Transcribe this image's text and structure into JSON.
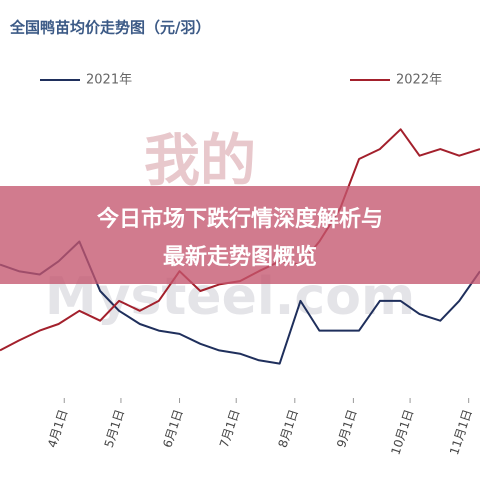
{
  "chart_data": {
    "type": "line",
    "title": "全国鸭苗均价走势图（元/羽）",
    "watermark": [
      "我的",
      "Mysteel.com"
    ],
    "x": [
      -34,
      -24,
      -13,
      -3,
      8,
      19,
      29,
      40,
      50,
      61,
      72,
      82,
      93,
      103,
      114,
      125,
      135,
      146,
      156,
      167,
      178,
      188,
      199,
      209,
      220
    ],
    "series": [
      {
        "name": "2021年",
        "color": "#1f2f5c",
        "values": [
          38,
          36,
          35,
          39,
          45,
          30,
          24,
          20,
          18,
          17,
          14,
          12,
          11,
          9,
          8,
          27,
          18,
          18,
          18,
          27,
          27,
          23,
          21,
          27,
          36
        ]
      },
      {
        "name": "2022年",
        "color": "#a3202c",
        "values": [
          12,
          15,
          18,
          20,
          24,
          21,
          27,
          24,
          27,
          36,
          30,
          32,
          33,
          36,
          39,
          38,
          45,
          55,
          70,
          73,
          79,
          71,
          73,
          71,
          73
        ]
      }
    ],
    "xlim": [
      -34,
      220
    ],
    "ylim": [
      0,
      100
    ],
    "xticks": [
      {
        "value": 0,
        "label": "4月1日"
      },
      {
        "value": 30,
        "label": "5月1日"
      },
      {
        "value": 61,
        "label": "6月1日"
      },
      {
        "value": 91,
        "label": "7月1日"
      },
      {
        "value": 122,
        "label": "8月1日"
      },
      {
        "value": 153,
        "label": "9月1日"
      },
      {
        "value": 183,
        "label": "10月1日"
      },
      {
        "value": 214,
        "label": "11月1日"
      }
    ]
  },
  "banner": {
    "lines": [
      "今日市场下跌行情深度解析与",
      "最新走势图概览"
    ]
  }
}
